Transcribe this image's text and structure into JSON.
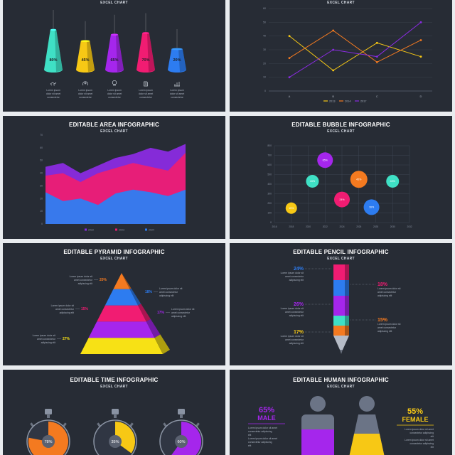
{
  "cones": {
    "subtitle": "EXCEL CHART",
    "items": [
      {
        "value": 80,
        "label": "80%",
        "color": "#3fe0c5",
        "icon": "handshake-icon"
      },
      {
        "value": 45,
        "label": "45%",
        "color": "#f7c815",
        "icon": "brain-gear-icon"
      },
      {
        "value": 65,
        "label": "65%",
        "color": "#a526ec",
        "icon": "idea-icon"
      },
      {
        "value": 70,
        "label": "70%",
        "color": "#f11c72",
        "icon": "document-icon"
      },
      {
        "value": 20,
        "label": "20%",
        "color": "#2d7cf0",
        "icon": "bar-chart-icon"
      }
    ],
    "caption": "Lorem ipsum dolor sit amet consectetur"
  },
  "line": {
    "subtitle": "EXCEL CHART",
    "chart_data": {
      "type": "line",
      "categories": [
        "A",
        "B",
        "C",
        "D"
      ],
      "ylim": [
        0,
        60
      ],
      "yticks": [
        "0",
        "10",
        "20",
        "30",
        "40",
        "50",
        "60"
      ],
      "series": [
        {
          "name": "2013",
          "color": "#f7c815",
          "values": [
            40,
            15,
            35,
            25
          ]
        },
        {
          "name": "2014",
          "color": "#f47a20",
          "values": [
            24,
            44,
            21,
            37
          ]
        },
        {
          "name": "2017",
          "color": "#8a2be2",
          "values": [
            10,
            30,
            25,
            50
          ]
        }
      ]
    }
  },
  "area": {
    "title": "EDITABLE AREA INFOGRAPHIC",
    "subtitle": "EXCEL CHART",
    "chart_data": {
      "type": "area",
      "ylim": [
        0,
        70
      ],
      "yticks": [
        "0",
        "10",
        "20",
        "30",
        "40",
        "50",
        "60",
        "70"
      ],
      "series": [
        {
          "name": "2022",
          "color": "#8a2be2",
          "values": [
            45,
            48,
            40,
            46,
            52,
            55,
            60,
            57,
            63
          ]
        },
        {
          "name": "2023",
          "color": "#ec1d73",
          "values": [
            38,
            40,
            33,
            40,
            44,
            48,
            45,
            42,
            56
          ]
        },
        {
          "name": "2024",
          "color": "#2e7ef2",
          "values": [
            25,
            18,
            20,
            15,
            24,
            27,
            25,
            22,
            27
          ]
        }
      ]
    }
  },
  "bubble": {
    "title": "EDITABLE BUBBLE INFOGRAPHIC",
    "subtitle": "EXCEL CHART",
    "chart_data": {
      "type": "scatter",
      "xticks": [
        "2016",
        "2018",
        "2020",
        "2022",
        "2024",
        "2026",
        "2028",
        "2030",
        "2032"
      ],
      "yticks": [
        "0",
        "100",
        "200",
        "300",
        "400",
        "500",
        "600",
        "700",
        "800"
      ],
      "xlim": [
        2016,
        2032
      ],
      "ylim": [
        0,
        800
      ],
      "points": [
        {
          "x": 2018,
          "y": 150,
          "r": 8,
          "label": "15%",
          "color": "#f7c815"
        },
        {
          "x": 2020.5,
          "y": 430,
          "r": 9,
          "label": "43%",
          "color": "#3fe0c5"
        },
        {
          "x": 2022,
          "y": 650,
          "r": 11,
          "label": "65%",
          "color": "#a526ec"
        },
        {
          "x": 2024,
          "y": 240,
          "r": 11,
          "label": "24%",
          "color": "#f11c72"
        },
        {
          "x": 2026,
          "y": 450,
          "r": 12,
          "label": "45%",
          "color": "#f47a20"
        },
        {
          "x": 2027.5,
          "y": 160,
          "r": 11,
          "label": "16%",
          "color": "#2d7cf0"
        },
        {
          "x": 2030,
          "y": 430,
          "r": 9,
          "label": "43%",
          "color": "#3fe0c5"
        }
      ]
    }
  },
  "pyramid": {
    "title": "EDITABLE PYRAMID INFOGRAPHIC",
    "subtitle": "EXCEL CHART",
    "layers": [
      {
        "label": "20%",
        "color": "#f47a20"
      },
      {
        "label": "18%",
        "color": "#2d7cf0"
      },
      {
        "label": "15%",
        "color": "#f11c72"
      },
      {
        "label": "17%",
        "color": "#a526ec"
      },
      {
        "label": "27%",
        "color": "#f7e115"
      }
    ],
    "caption": "Lorem ipsum dolor sit amet consectetur adipiscing elit"
  },
  "pencil": {
    "title": "EDITABLE PENCIL INFOGRAPHIC",
    "subtitle": "EXCEL CHART",
    "left": [
      {
        "label": "24%",
        "color": "#2d7cf0"
      },
      {
        "label": "26%",
        "color": "#a526ec"
      },
      {
        "label": "17%",
        "color": "#f7c815"
      }
    ],
    "right": [
      {
        "label": "18%",
        "color": "#f11c72"
      },
      {
        "label": "15%",
        "color": "#f47a20"
      }
    ],
    "caption": "Lorem ipsum dolor sit amet consectetur adipiscing elit"
  },
  "time": {
    "title": "EDITABLE TIME INFOGRAPHIC",
    "subtitle": "EXCEL CHART",
    "items": [
      {
        "value": 78,
        "label": "78%",
        "color": "#f47a20"
      },
      {
        "value": 35,
        "label": "35%",
        "color": "#f7c815"
      },
      {
        "value": 60,
        "label": "60%",
        "color": "#a526ec"
      }
    ]
  },
  "human": {
    "title": "EDITABLE HUMAN INFOGRAPHIC",
    "subtitle": "EXCEL CHART",
    "male": {
      "pct": "65%",
      "label": "MALE",
      "color": "#a526ec",
      "value": 65
    },
    "female": {
      "pct": "55%",
      "label": "FEMALE",
      "color": "#f7c815",
      "value": 55
    },
    "caption": "Lorem ipsum dolor sit amet consectetur adipiscing elit"
  }
}
